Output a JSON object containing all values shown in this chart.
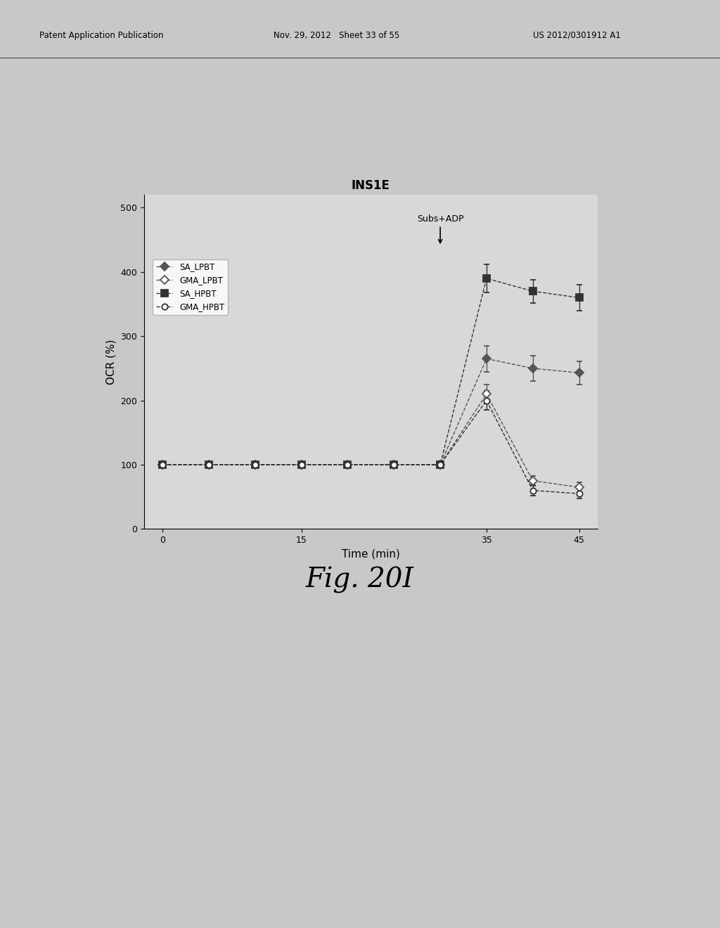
{
  "title": "INS1E",
  "xlabel": "Time (min)",
  "ylabel": "OCR (%)",
  "fig_label": "Fig. 20I",
  "annotation": "Subs+ADP",
  "xlim": [
    -2,
    47
  ],
  "ylim": [
    0,
    520
  ],
  "xticks": [
    0,
    15,
    35,
    45
  ],
  "yticks": [
    0,
    100,
    200,
    300,
    400,
    500
  ],
  "page_bg": "#c8c8c8",
  "plot_bg": "#d8d8d8",
  "header_left": "Patent Application Publication",
  "header_mid": "Nov. 29, 2012   Sheet 33 of 55",
  "header_right": "US 2012/0301912 A1",
  "series": {
    "SA_LPBT": {
      "x": [
        0,
        5,
        10,
        15,
        20,
        25,
        30,
        35,
        40,
        45
      ],
      "y": [
        100,
        100,
        100,
        100,
        100,
        100,
        100,
        265,
        250,
        243
      ],
      "yerr": [
        0,
        0,
        0,
        0,
        0,
        0,
        0,
        20,
        20,
        18
      ],
      "color": "#555555",
      "marker": "D",
      "filled": true,
      "linestyle": "--",
      "label": "SA_LPBT",
      "markersize": 6
    },
    "GMA_LPBT": {
      "x": [
        0,
        5,
        10,
        15,
        20,
        25,
        30,
        35,
        40,
        45
      ],
      "y": [
        100,
        100,
        100,
        100,
        100,
        100,
        100,
        210,
        75,
        65
      ],
      "yerr": [
        0,
        0,
        0,
        0,
        0,
        0,
        0,
        15,
        8,
        8
      ],
      "color": "#555555",
      "marker": "D",
      "filled": false,
      "linestyle": "--",
      "label": "GMA_LPBT",
      "markersize": 6
    },
    "SA_HPBT": {
      "x": [
        0,
        5,
        10,
        15,
        20,
        25,
        30,
        35,
        40,
        45
      ],
      "y": [
        100,
        100,
        100,
        100,
        100,
        100,
        100,
        390,
        370,
        360
      ],
      "yerr": [
        0,
        0,
        0,
        0,
        0,
        0,
        0,
        22,
        18,
        20
      ],
      "color": "#333333",
      "marker": "s",
      "filled": true,
      "linestyle": "--",
      "label": "SA_HPBT",
      "markersize": 7
    },
    "GMA_HPBT": {
      "x": [
        0,
        5,
        10,
        15,
        20,
        25,
        30,
        35,
        40,
        45
      ],
      "y": [
        100,
        100,
        100,
        100,
        100,
        100,
        100,
        200,
        60,
        55
      ],
      "yerr": [
        0,
        0,
        0,
        0,
        0,
        0,
        0,
        15,
        8,
        8
      ],
      "color": "#333333",
      "marker": "o",
      "filled": false,
      "linestyle": "--",
      "label": "GMA_HPBT",
      "markersize": 6
    }
  },
  "series_order": [
    "SA_LPBT",
    "GMA_LPBT",
    "SA_HPBT",
    "GMA_HPBT"
  ]
}
